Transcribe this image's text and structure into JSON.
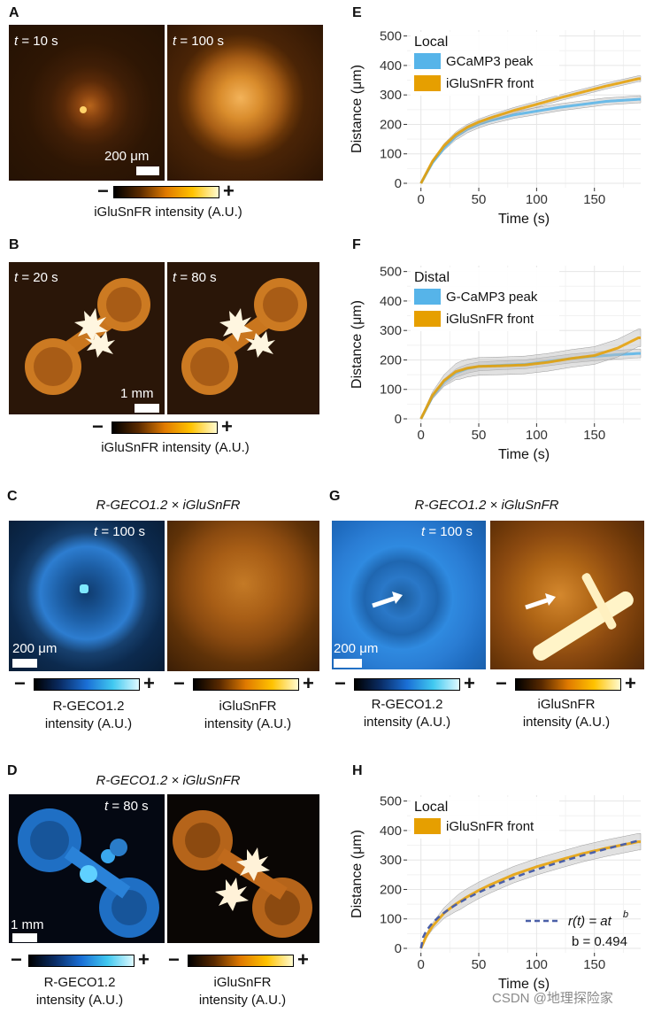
{
  "panels": {
    "A": {
      "label": "A",
      "left_time": "t = 10 s",
      "right_time": "t = 100 s",
      "scalebar": "200 μm",
      "colorbar": {
        "minus": "−",
        "plus": "+",
        "caption": "iGluSnFR intensity (A.U.)"
      }
    },
    "B": {
      "label": "B",
      "left_time": "t = 20 s",
      "right_time": "t = 80 s",
      "scalebar": "1 mm",
      "colorbar": {
        "minus": "−",
        "plus": "+",
        "caption": "iGluSnFR intensity (A.U.)"
      }
    },
    "C": {
      "label": "C",
      "header": "R-GECO1.2 × iGluSnFR",
      "time": "t = 100 s",
      "scalebar": "200 μm",
      "left_bar": {
        "minus": "−",
        "plus": "+",
        "caption_line1": "R-GECO1.2",
        "caption_line2": "intensity (A.U.)"
      },
      "right_bar": {
        "minus": "−",
        "plus": "+",
        "caption_line1": "iGluSnFR",
        "caption_line2": "intensity (A.U.)"
      }
    },
    "D": {
      "label": "D",
      "header": "R-GECO1.2 × iGluSnFR",
      "time": "t = 80 s",
      "scalebar": "1 mm",
      "left_bar": {
        "minus": "−",
        "plus": "+",
        "caption_line1": "R-GECO1.2",
        "caption_line2": "intensity (A.U.)"
      },
      "right_bar": {
        "minus": "−",
        "plus": "+",
        "caption_line1": "iGluSnFR",
        "caption_line2": "intensity (A.U.)"
      }
    },
    "G": {
      "label": "G",
      "header": "R-GECO1.2 × iGluSnFR",
      "time": "t = 100 s",
      "scalebar": "200 μm",
      "left_bar": {
        "minus": "−",
        "plus": "+",
        "caption_line1": "R-GECO1.2",
        "caption_line2": "intensity (A.U.)"
      },
      "right_bar": {
        "minus": "−",
        "plus": "+",
        "caption_line1": "iGluSnFR",
        "caption_line2": "intensity (A.U.)"
      }
    },
    "E": {
      "label": "E"
    },
    "F": {
      "label": "F"
    },
    "H": {
      "label": "H"
    }
  },
  "colors": {
    "gcamp_blue": "#56B4E9",
    "iglu_orange": "#E69F00",
    "fit_dash": "#4a5fa8",
    "grid": "#e6e6e6"
  },
  "chart_data": [
    {
      "id": "E",
      "type": "line",
      "xlabel": "Time (s)",
      "ylabel": "Distance (μm)",
      "xlim": [
        -12,
        190
      ],
      "ylim": [
        -15,
        520
      ],
      "xticks": [
        0,
        50,
        100,
        150
      ],
      "yticks": [
        0,
        100,
        200,
        300,
        400,
        500
      ],
      "legend": {
        "title": "Local",
        "position": "top-left"
      },
      "series": [
        {
          "name": "GCaMP3 peak",
          "color": "#56B4E9",
          "x": [
            0,
            10,
            20,
            30,
            40,
            50,
            60,
            80,
            100,
            120,
            140,
            160,
            188
          ],
          "y": [
            0,
            70,
            120,
            158,
            183,
            200,
            213,
            232,
            245,
            258,
            268,
            278,
            285
          ],
          "band": 12
        },
        {
          "name": "iGluSnFR front",
          "color": "#E69F00",
          "x": [
            0,
            10,
            20,
            30,
            40,
            50,
            60,
            80,
            100,
            120,
            140,
            160,
            188
          ],
          "y": [
            0,
            75,
            128,
            165,
            190,
            208,
            222,
            247,
            268,
            290,
            310,
            330,
            355
          ],
          "band": 10
        }
      ]
    },
    {
      "id": "F",
      "type": "line",
      "xlabel": "Time (s)",
      "ylabel": "Distance (μm)",
      "xlim": [
        -12,
        190
      ],
      "ylim": [
        -15,
        520
      ],
      "xticks": [
        0,
        50,
        100,
        150
      ],
      "yticks": [
        0,
        100,
        200,
        300,
        400,
        500
      ],
      "legend": {
        "title": "Distal",
        "position": "top-left"
      },
      "series": [
        {
          "name": "G-CaMP3 peak",
          "color": "#56B4E9",
          "x": [
            0,
            10,
            20,
            30,
            40,
            50,
            70,
            90,
            110,
            130,
            150,
            170,
            188
          ],
          "y": [
            0,
            75,
            125,
            155,
            170,
            178,
            182,
            185,
            195,
            205,
            212,
            218,
            222
          ],
          "band": 15
        },
        {
          "name": "iGluSnFR front",
          "color": "#E69F00",
          "x": [
            0,
            10,
            20,
            30,
            40,
            50,
            70,
            90,
            110,
            130,
            150,
            170,
            188
          ],
          "y": [
            0,
            80,
            130,
            160,
            172,
            178,
            180,
            183,
            192,
            205,
            215,
            240,
            275
          ],
          "band": 30
        }
      ]
    },
    {
      "id": "H",
      "type": "line",
      "xlabel": "Time (s)",
      "ylabel": "Distance (μm)",
      "xlim": [
        -12,
        190
      ],
      "ylim": [
        -15,
        520
      ],
      "xticks": [
        0,
        50,
        100,
        150
      ],
      "yticks": [
        0,
        100,
        200,
        300,
        400,
        500
      ],
      "legend": {
        "title": "Local",
        "position": "top-left"
      },
      "series": [
        {
          "name": "iGluSnFR front",
          "color": "#E69F00",
          "x": [
            0,
            5,
            10,
            20,
            30,
            40,
            50,
            60,
            80,
            100,
            120,
            140,
            160,
            188
          ],
          "y": [
            0,
            45,
            75,
            120,
            150,
            175,
            197,
            216,
            250,
            277,
            300,
            322,
            340,
            362
          ],
          "band": 28
        }
      ],
      "fit": {
        "label_formula": "r(t) = at",
        "label_exponent": "b",
        "label_b": "b = 0.494",
        "a": 27.5,
        "b": 0.494
      }
    }
  ],
  "watermark": "CSDN @地理探险家"
}
